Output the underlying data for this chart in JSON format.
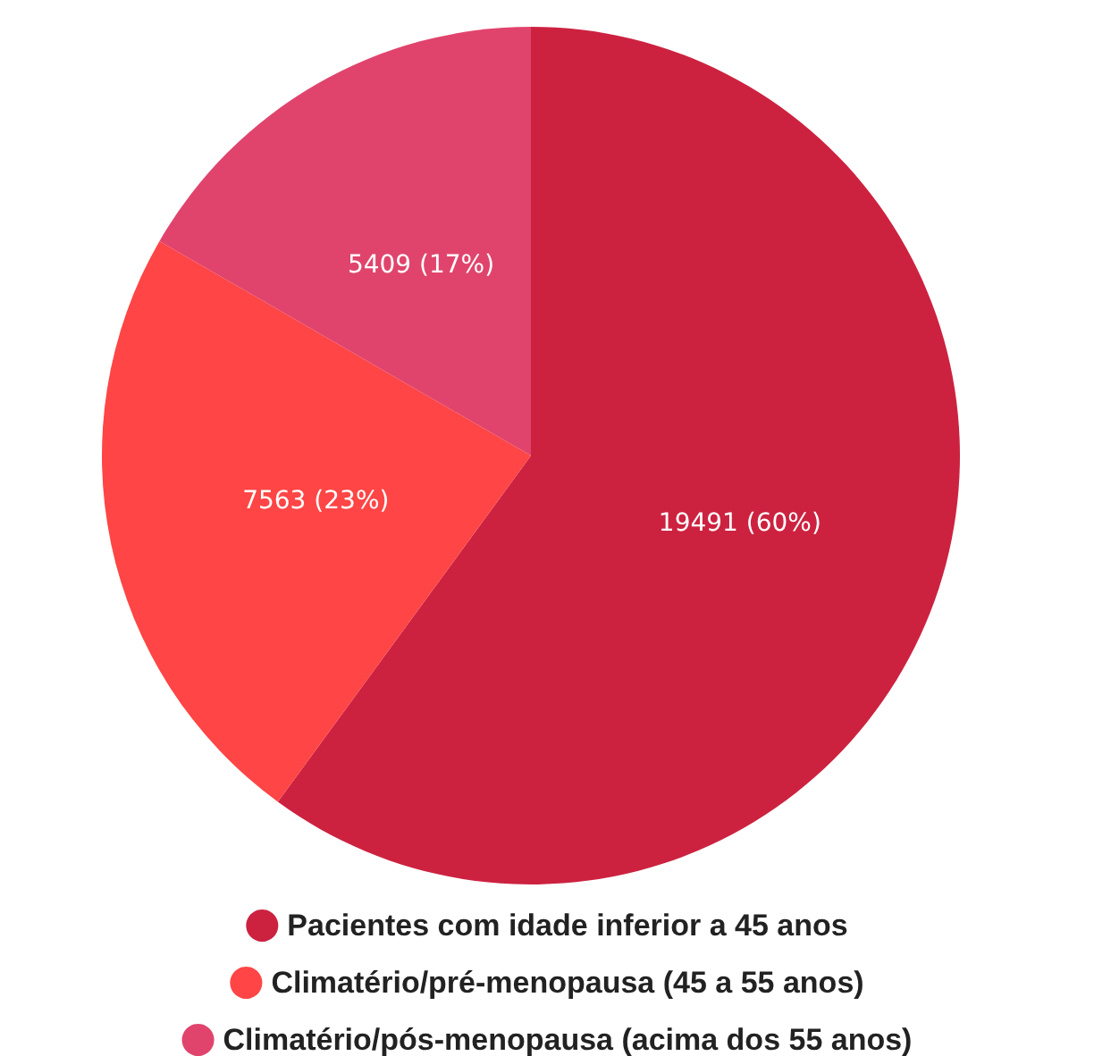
{
  "chart_data": {
    "type": "pie",
    "categories": [
      "Pacientes com idade inferior a 45 anos",
      "Climatério/pré-menopausa (45 a 55 anos)",
      "Climatério/pós-menopausa (acima dos 55 anos)"
    ],
    "values": [
      19491,
      7563,
      5409
    ],
    "colors": [
      "#cc2240",
      "#ff4545",
      "#e0446c"
    ],
    "value_labels": [
      "19491 (60%)",
      "7563 (23%)",
      "5409 (17%)"
    ],
    "legend": "bottom"
  }
}
